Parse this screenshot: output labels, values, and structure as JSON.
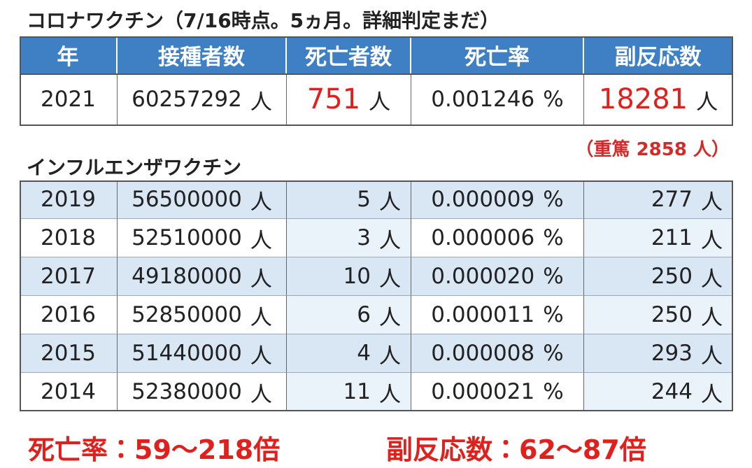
{
  "covid": {
    "title": "コロナワクチン（7/16時点。5ヵ月。詳細判定まだ）",
    "headers": [
      "年",
      "接種者数",
      "死亡者数",
      "死亡率",
      "副反応数"
    ],
    "rows": [
      [
        {
          "text": "2021"
        },
        {
          "text": "60257292",
          "unit": "人"
        },
        {
          "text": "751",
          "unit": "人",
          "color": "#e0201c"
        },
        {
          "text": "0.001246",
          "unit": "%"
        },
        {
          "text": "18281",
          "unit": "人",
          "color": "#e0201c"
        }
      ]
    ],
    "note": "（重篤 2858 人）"
  },
  "flu": {
    "title": "インフルエンザワクチン",
    "rows": [
      [
        {
          "text": "2019"
        },
        {
          "text": "56500000",
          "unit": "人"
        },
        {
          "text": "5",
          "unit": "人"
        },
        {
          "text": "0.000009",
          "unit": "%"
        },
        {
          "text": "277",
          "unit": "人"
        }
      ],
      [
        {
          "text": "2018"
        },
        {
          "text": "52510000",
          "unit": "人"
        },
        {
          "text": "3",
          "unit": "人"
        },
        {
          "text": "0.000006",
          "unit": "%"
        },
        {
          "text": "211",
          "unit": "人"
        }
      ],
      [
        {
          "text": "2017"
        },
        {
          "text": "49180000",
          "unit": "人"
        },
        {
          "text": "10",
          "unit": "人"
        },
        {
          "text": "0.000020",
          "unit": "%"
        },
        {
          "text": "250",
          "unit": "人"
        }
      ],
      [
        {
          "text": "2016"
        },
        {
          "text": "52850000",
          "unit": "人"
        },
        {
          "text": "6",
          "unit": "人"
        },
        {
          "text": "0.000011",
          "unit": "%"
        },
        {
          "text": "250",
          "unit": "人"
        }
      ],
      [
        {
          "text": "2015"
        },
        {
          "text": "51440000",
          "unit": "人"
        },
        {
          "text": "4",
          "unit": "人"
        },
        {
          "text": "0.000008",
          "unit": "%"
        },
        {
          "text": "293",
          "unit": "人"
        }
      ],
      [
        {
          "text": "2014"
        },
        {
          "text": "52380000",
          "unit": "人"
        },
        {
          "text": "11",
          "unit": "人"
        },
        {
          "text": "0.000021",
          "unit": "%"
        },
        {
          "text": "244",
          "unit": "人"
        }
      ]
    ]
  },
  "footer": [
    "死亡率：59～218倍",
    "副反応数：62～87倍"
  ]
}
